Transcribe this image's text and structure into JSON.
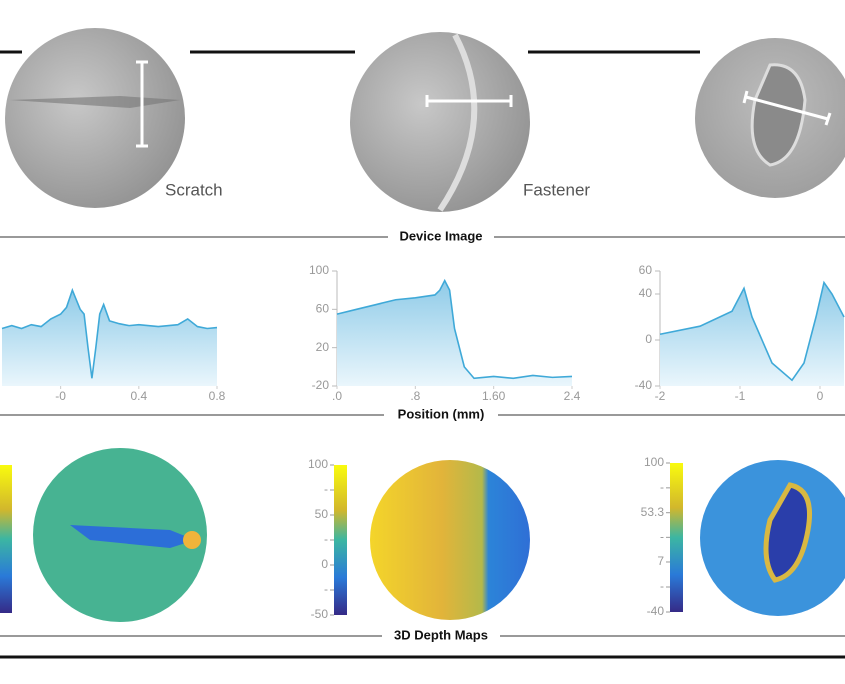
{
  "device_images": {
    "labels": [
      "Scratch",
      "Fastener"
    ]
  },
  "section_titles": [
    "Device Image",
    "Position (mm)",
    "3D Depth Maps"
  ],
  "chart_data": [
    {
      "type": "area",
      "color": "#3fa9d8",
      "xlim": [
        -0.3,
        0.8
      ],
      "ylim": [
        -20,
        100
      ],
      "xticks": [
        {
          "value": 0,
          "label": "-0"
        },
        0.4,
        0.8
      ],
      "x": [
        -0.3,
        -0.25,
        -0.2,
        -0.15,
        -0.1,
        -0.05,
        0,
        0.03,
        0.06,
        0.08,
        0.1,
        0.12,
        0.14,
        0.16,
        0.18,
        0.2,
        0.22,
        0.25,
        0.3,
        0.35,
        0.4,
        0.5,
        0.6,
        0.65,
        0.7,
        0.75,
        0.8
      ],
      "values": [
        40,
        43,
        40,
        44,
        42,
        50,
        55,
        62,
        80,
        70,
        60,
        55,
        20,
        -12,
        20,
        55,
        65,
        48,
        45,
        43,
        44,
        42,
        44,
        50,
        42,
        40,
        41
      ]
    },
    {
      "type": "area",
      "color": "#3fa9d8",
      "xlim": [
        0,
        2.4
      ],
      "ylim": [
        -20,
        100
      ],
      "xticks": [
        {
          "value": 0,
          "label": ".0"
        },
        {
          "value": 0.8,
          "label": ".8"
        },
        {
          "value": 1.6,
          "label": "1.60"
        },
        2.4
      ],
      "yticks": [
        100,
        60,
        20,
        -20
      ],
      "x": [
        0,
        0.2,
        0.4,
        0.6,
        0.8,
        1.0,
        1.05,
        1.1,
        1.15,
        1.2,
        1.3,
        1.4,
        1.6,
        1.8,
        2.0,
        2.2,
        2.4
      ],
      "values": [
        55,
        60,
        65,
        70,
        72,
        75,
        80,
        90,
        80,
        40,
        0,
        -12,
        -10,
        -12,
        -9,
        -11,
        -10
      ]
    },
    {
      "type": "area",
      "color": "#3fa9d8",
      "xlim": [
        -2,
        0.3
      ],
      "ylim": [
        -40,
        60
      ],
      "xticks": [
        -2,
        -1,
        0
      ],
      "yticks": [
        60,
        40,
        0,
        -40
      ],
      "x": [
        -2,
        -1.5,
        -1.1,
        -0.95,
        -0.85,
        -0.6,
        -0.35,
        -0.2,
        -0.05,
        0.05,
        0.15,
        0.3
      ],
      "values": [
        5,
        12,
        25,
        45,
        20,
        -20,
        -35,
        -20,
        20,
        50,
        40,
        20
      ]
    }
  ],
  "colorbars": [
    {
      "lim": [
        -50,
        100
      ],
      "ticks": [
        100,
        {
          "value": 75,
          "label": "-"
        },
        50,
        {
          "value": 25,
          "label": "-"
        },
        0,
        {
          "value": -25,
          "label": "-"
        },
        -50
      ]
    },
    {
      "lim": [
        -40,
        100
      ],
      "ticks": [
        100,
        {
          "value": 76.65,
          "label": "-"
        },
        53.3,
        {
          "value": 30.15,
          "label": "-"
        },
        7,
        {
          "value": -16.5,
          "label": "-"
        },
        -40
      ]
    }
  ]
}
